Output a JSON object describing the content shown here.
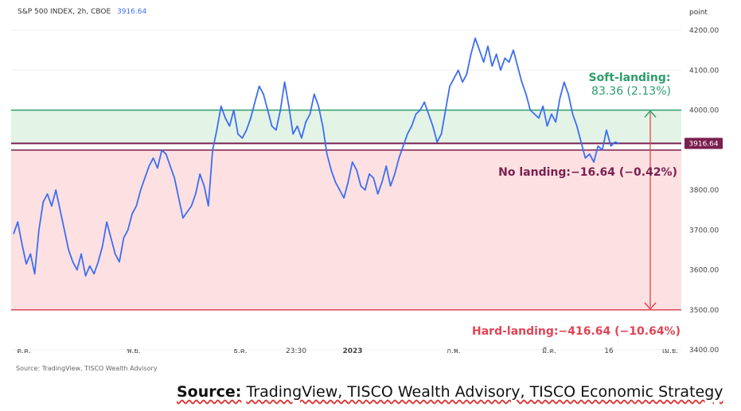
{
  "header": {
    "symbol": "S&P 500 INDEX, 2h, CBOE",
    "last_value": "3916.64",
    "axis_unit": "point"
  },
  "source_small": "Source: TradingView, TISCO Wealth Advisory",
  "footer": {
    "label": "Source:",
    "text": "TradingView, TISCO Wealth Advisory, TISCO Economic Strategy"
  },
  "colors": {
    "line": "#3d6ef0",
    "soft": "#2e9e6a",
    "no_landing": "#7a1f4f",
    "hard": "#e04555",
    "soft_zone": "#e3f3e6",
    "hard_zone": "#fde0e2"
  },
  "annotations": {
    "soft_title": "Soft-landing:",
    "soft_value": "83.36 (2.13%)",
    "no_landing": "No landing:−16.64 (−0.42%)",
    "hard_landing": "Hard-landing:−416.64 (−10.64%)"
  },
  "chart_data": {
    "type": "line",
    "ylim": [
      3400,
      4230
    ],
    "y_ticks": [
      "4200.00",
      "4100.00",
      "4000.00",
      "3900.00",
      "3800.00",
      "3700.00",
      "3600.00",
      "3500.00",
      "3400.00"
    ],
    "x_ticks": [
      "ต.ค.",
      "พ.ย.",
      "ธ.ค.",
      "23:30",
      "2023",
      "ก.พ.",
      "มี.ค.",
      "16",
      "เม.ย."
    ],
    "levels": {
      "soft": 4000,
      "current": 3916.64,
      "no_landing": 3900,
      "hard": 3500
    },
    "series": [
      {
        "values": [
          3690,
          3720,
          3665,
          3615,
          3640,
          3590,
          3700,
          3770,
          3790,
          3760,
          3800,
          3750,
          3700,
          3650,
          3620,
          3600,
          3640,
          3585,
          3610,
          3590,
          3620,
          3660,
          3720,
          3680,
          3640,
          3620,
          3680,
          3700,
          3740,
          3760,
          3800,
          3830,
          3860,
          3880,
          3855,
          3900,
          3890,
          3860,
          3830,
          3780,
          3730,
          3745,
          3760,
          3790,
          3840,
          3810,
          3760,
          3900,
          3950,
          4010,
          3980,
          3960,
          4000,
          3940,
          3930,
          3950,
          3980,
          4020,
          4060,
          4040,
          4000,
          3960,
          3950,
          4000,
          4070,
          4010,
          3940,
          3960,
          3930,
          3970,
          3990,
          4040,
          4010,
          3960,
          3890,
          3850,
          3820,
          3800,
          3780,
          3820,
          3870,
          3850,
          3810,
          3800,
          3840,
          3830,
          3790,
          3820,
          3860,
          3810,
          3840,
          3880,
          3910,
          3940,
          3960,
          3990,
          4000,
          4020,
          3990,
          3960,
          3920,
          3940,
          4000,
          4060,
          4080,
          4100,
          4070,
          4090,
          4140,
          4180,
          4150,
          4120,
          4160,
          4110,
          4140,
          4100,
          4130,
          4120,
          4150,
          4110,
          4070,
          4040,
          4000,
          3990,
          3980,
          4010,
          3960,
          3990,
          3970,
          4030,
          4070,
          4040,
          3990,
          3960,
          3920,
          3880,
          3890,
          3870,
          3910,
          3900,
          3950,
          3910,
          3920,
          3916.64
        ]
      }
    ]
  }
}
